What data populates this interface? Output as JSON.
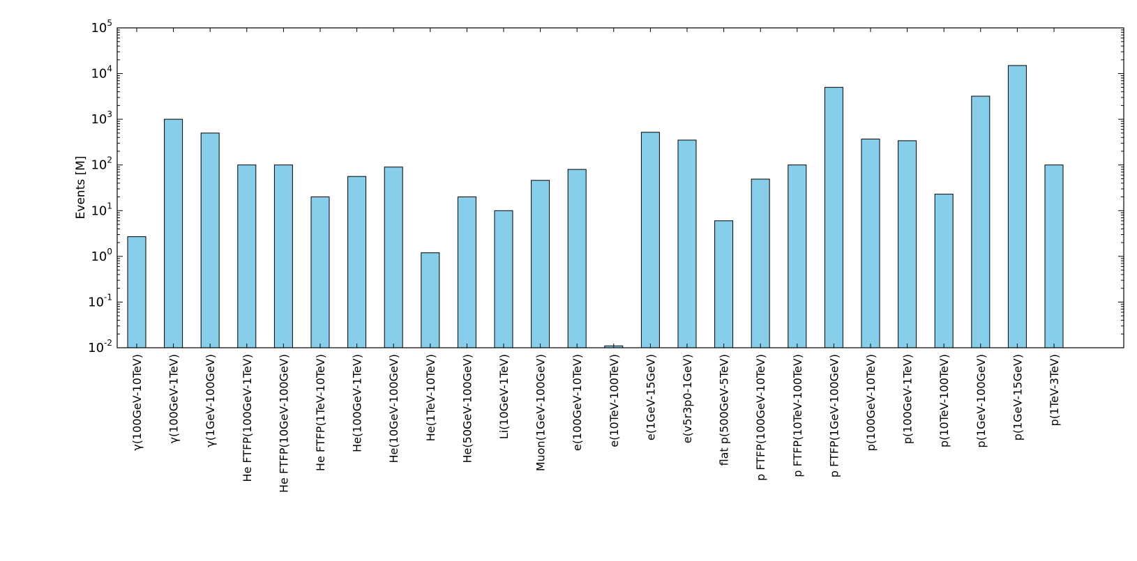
{
  "chart_data": {
    "type": "bar",
    "ylabel": "Events [M]",
    "yscale": "log",
    "ylim": [
      0.01,
      100000
    ],
    "ytick_labels": [
      {
        "base": "10",
        "exp": "-2"
      },
      {
        "base": "10",
        "exp": "-1"
      },
      {
        "base": "10",
        "exp": "0"
      },
      {
        "base": "10",
        "exp": "1"
      },
      {
        "base": "10",
        "exp": "2"
      },
      {
        "base": "10",
        "exp": "3"
      },
      {
        "base": "10",
        "exp": "4"
      },
      {
        "base": "10",
        "exp": "5"
      }
    ],
    "categories": [
      "γ(100GeV-10TeV)",
      "γ(100GeV-1TeV)",
      "γ(1GeV-100GeV)",
      "He FTFP(100GeV-1TeV)",
      "He FTFP(10GeV-100GeV)",
      "He FTFP(1TeV-10TeV)",
      "He(100GeV-1TeV)",
      "He(10GeV-100GeV)",
      "He(1TeV-10TeV)",
      "He(50GeV-100GeV)",
      "Li(10GeV-1TeV)",
      "Muon(1GeV-100GeV)",
      "e(100GeV-10TeV)",
      "e(10TeV-100TeV)",
      "e(1GeV-15GeV)",
      "e(v5r3p0-1GeV)",
      "flat p(500GeV-5TeV)",
      "p FTFP(100GeV-10TeV)",
      "p FTFP(10TeV-100TeV)",
      "p FTFP(1GeV-100GeV)",
      "p(100GeV-10TeV)",
      "p(100GeV-1TeV)",
      "p(10TeV-100TeV)",
      "p(1GeV-100GeV)",
      "p(1GeV-15GeV)",
      "p(1TeV-3TeV)"
    ],
    "values": [
      2.7,
      1000,
      500,
      100,
      100,
      20,
      56,
      90,
      1.2,
      20,
      10,
      46,
      80,
      0.011,
      520,
      350,
      6,
      49,
      100,
      5000,
      370,
      340,
      23,
      3200,
      15000,
      100
    ],
    "colors": {
      "bar_fill": "#87ceeb",
      "bar_edge": "#000000",
      "axes": "#000000",
      "background": "#ffffff"
    },
    "grid": false,
    "legend": "none"
  }
}
